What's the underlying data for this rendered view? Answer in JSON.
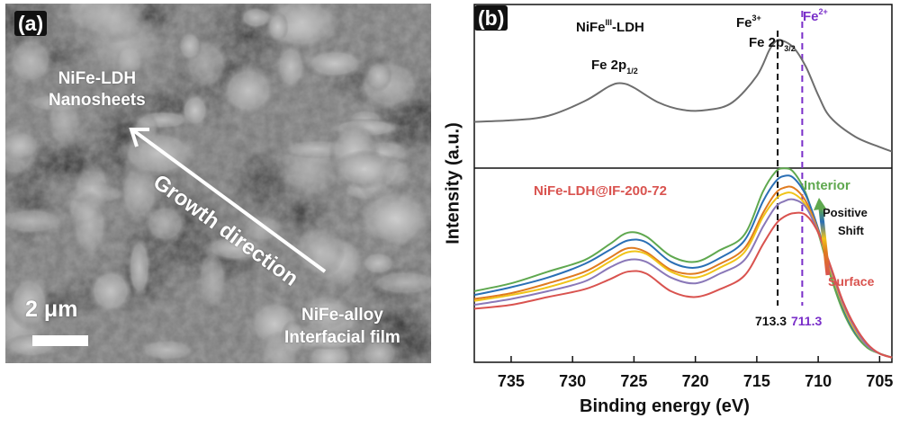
{
  "panel_a": {
    "label": "(a)",
    "nanosheets_line1": "NiFe-LDH",
    "nanosheets_line2": "Nanosheets",
    "growth_label": "Growth direction",
    "alloy_line1": "NiFe-alloy",
    "alloy_line2": "Interfacial film",
    "scale_label": "2 μm"
  },
  "panel_b": {
    "label": "(b)",
    "top_sample_prefix": "NiFe",
    "top_sample_sup": "III",
    "top_sample_suffix": "-LDH",
    "fe3_base": "Fe",
    "fe3_sup": "3+",
    "fe2_base": "Fe",
    "fe2_sup": "2+",
    "fe2p32_base": "Fe 2p",
    "fe2p32_sub": "3/2",
    "fe2p12_base": "Fe 2p",
    "fe2p12_sub": "1/2",
    "bottom_sample": "NiFe-LDH@IF-200-72",
    "interior": "Interior",
    "surface": "Surface",
    "shift_line1": "Positive",
    "shift_line2": "Shift",
    "ref_fe3": "713.3",
    "ref_fe2": "711.3"
  },
  "colors": {
    "top_curve": "#6e6e6e",
    "interior": "#5fa84f",
    "surface": "#d9534f",
    "fe2": "#7a2fc9",
    "blue": "#2a6fb5",
    "orange": "#e07b1f",
    "yellow": "#f0c419",
    "violet": "#8a78b8"
  },
  "chart_data": {
    "type": "line",
    "xlabel": "Binding energy (eV)",
    "ylabel": "Intensity (a.u.)",
    "xlim": [
      738,
      704
    ],
    "x_reversed": true,
    "xticks": [
      735,
      730,
      725,
      720,
      715,
      710,
      705
    ],
    "reference_lines": [
      713.3,
      711.3
    ],
    "top_panel": {
      "name": "NiFeIII-LDH",
      "x": [
        738,
        735,
        732,
        729,
        727,
        726,
        725,
        723,
        721,
        719,
        717,
        715,
        714,
        713.5,
        713,
        712,
        711,
        710,
        709,
        707,
        705,
        704
      ],
      "y": [
        0.3,
        0.31,
        0.34,
        0.44,
        0.54,
        0.56,
        0.53,
        0.43,
        0.38,
        0.38,
        0.43,
        0.61,
        0.78,
        0.84,
        0.85,
        0.8,
        0.67,
        0.48,
        0.33,
        0.2,
        0.13,
        0.1
      ]
    },
    "bottom_panel": {
      "x": [
        738,
        735,
        732,
        729,
        727,
        725.5,
        724,
        722,
        720,
        718,
        716,
        714.5,
        713.5,
        712.8,
        712,
        711,
        710,
        709,
        708,
        707,
        706,
        705,
        704
      ],
      "series": [
        {
          "color": "#5fa84f",
          "y": [
            0.36,
            0.4,
            0.46,
            0.52,
            0.6,
            0.66,
            0.64,
            0.54,
            0.51,
            0.57,
            0.65,
            0.87,
            0.97,
            0.99,
            0.97,
            0.86,
            0.66,
            0.44,
            0.26,
            0.14,
            0.07,
            0.04,
            0.02
          ]
        },
        {
          "color": "#2a6fb5",
          "y": [
            0.34,
            0.38,
            0.43,
            0.5,
            0.57,
            0.62,
            0.61,
            0.51,
            0.48,
            0.53,
            0.62,
            0.82,
            0.92,
            0.95,
            0.94,
            0.85,
            0.68,
            0.47,
            0.28,
            0.15,
            0.08,
            0.04,
            0.02
          ]
        },
        {
          "color": "#e07b1f",
          "y": [
            0.32,
            0.35,
            0.4,
            0.46,
            0.53,
            0.58,
            0.56,
            0.47,
            0.45,
            0.5,
            0.58,
            0.76,
            0.86,
            0.89,
            0.89,
            0.82,
            0.67,
            0.47,
            0.29,
            0.16,
            0.08,
            0.04,
            0.02
          ]
        },
        {
          "color": "#f0c419",
          "y": [
            0.31,
            0.34,
            0.38,
            0.44,
            0.51,
            0.56,
            0.55,
            0.46,
            0.43,
            0.48,
            0.56,
            0.74,
            0.83,
            0.86,
            0.86,
            0.8,
            0.66,
            0.47,
            0.29,
            0.16,
            0.08,
            0.04,
            0.02
          ]
        },
        {
          "color": "#8a78b8",
          "y": [
            0.29,
            0.32,
            0.36,
            0.41,
            0.48,
            0.52,
            0.51,
            0.43,
            0.4,
            0.45,
            0.52,
            0.69,
            0.79,
            0.82,
            0.83,
            0.79,
            0.66,
            0.48,
            0.3,
            0.17,
            0.08,
            0.04,
            0.02
          ]
        },
        {
          "color": "#d9534f",
          "y": [
            0.27,
            0.29,
            0.33,
            0.37,
            0.42,
            0.46,
            0.45,
            0.36,
            0.33,
            0.37,
            0.44,
            0.6,
            0.7,
            0.74,
            0.76,
            0.75,
            0.66,
            0.49,
            0.31,
            0.18,
            0.09,
            0.04,
            0.02
          ]
        }
      ]
    }
  }
}
